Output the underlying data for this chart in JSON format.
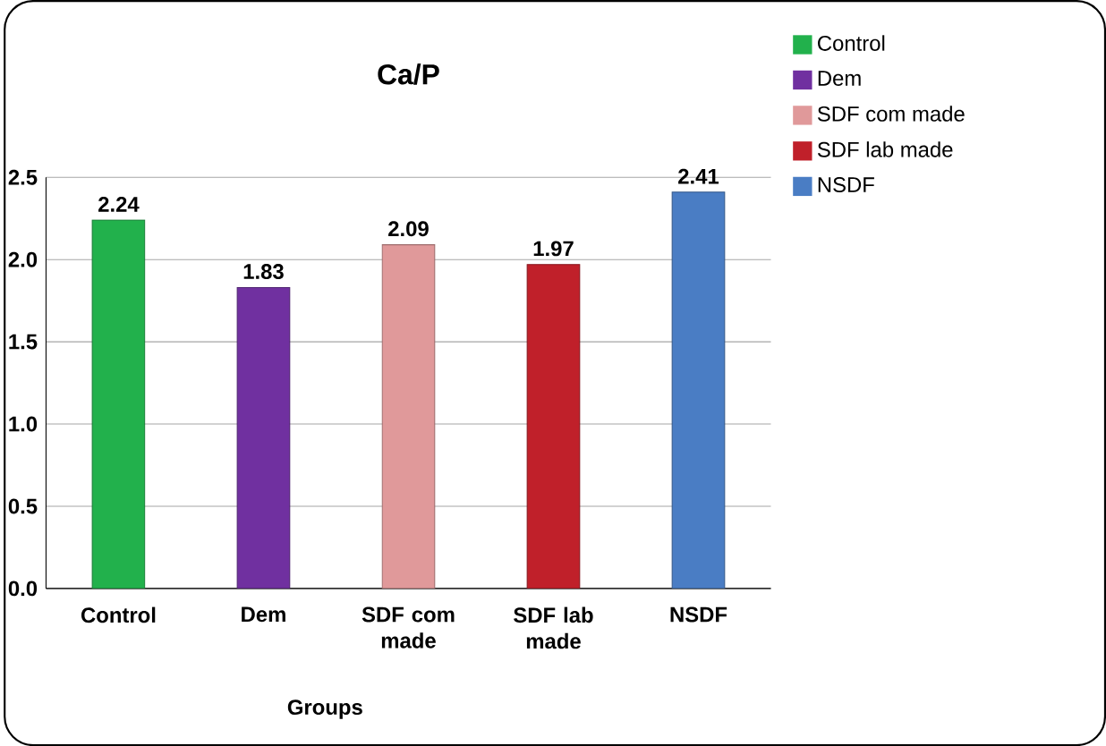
{
  "chart_data": {
    "type": "bar",
    "title": "Ca/P",
    "xlabel": "Groups",
    "categories": [
      "Control",
      "Dem",
      "SDF com made",
      "SDF lab made",
      "NSDF"
    ],
    "series": [
      {
        "name": "Control",
        "color": "#22b14c",
        "values": [
          2.24,
          null,
          null,
          null,
          null
        ]
      },
      {
        "name": "Dem",
        "color": "#7030a0",
        "values": [
          null,
          1.83,
          null,
          null,
          null
        ]
      },
      {
        "name": "SDF com made",
        "color": "#e0999a",
        "values": [
          null,
          null,
          2.09,
          null,
          null
        ]
      },
      {
        "name": "SDF lab made",
        "color": "#c0202a",
        "values": [
          null,
          null,
          null,
          1.97,
          null
        ]
      },
      {
        "name": "NSDF",
        "color": "#4a7dc4",
        "values": [
          null,
          null,
          null,
          null,
          2.41
        ]
      }
    ],
    "ylim": [
      0,
      2.5
    ],
    "yticks": [
      {
        "value": 0,
        "label": "0.0"
      },
      {
        "value": 0.5,
        "label": "0.5"
      },
      {
        "value": 1,
        "label": "1.0"
      },
      {
        "value": 1.5,
        "label": "1.5"
      },
      {
        "value": 2,
        "label": "2.0"
      },
      {
        "value": 2.5,
        "label": "2.5"
      }
    ],
    "grid": "y",
    "legend": "top right",
    "data_labels": true
  }
}
